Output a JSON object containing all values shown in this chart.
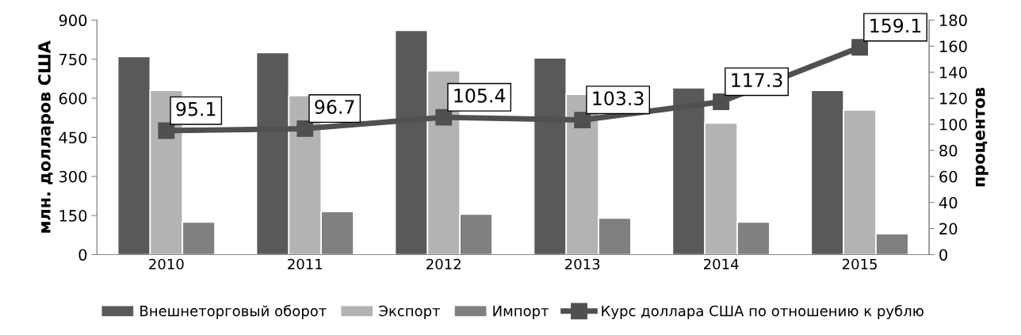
{
  "chart_data": {
    "type": "bar",
    "categories": [
      "2010",
      "2011",
      "2012",
      "2013",
      "2014",
      "2015"
    ],
    "ylabel": "млн. долларов США",
    "y2label": "процентов",
    "ylim": [
      0,
      900
    ],
    "yticks": [
      0,
      150,
      300,
      450,
      600,
      750,
      900
    ],
    "y2lim": [
      0,
      180
    ],
    "y2ticks": [
      0,
      20,
      40,
      60,
      80,
      100,
      120,
      140,
      160,
      180
    ],
    "grid": false,
    "legend": "bottom",
    "series": [
      {
        "name": "Внешнеторговый оборот",
        "color": "#595959",
        "values": [
          760,
          775,
          860,
          755,
          640,
          630
        ]
      },
      {
        "name": "Экспорт",
        "color": "#b3b3b3",
        "values": [
          630,
          610,
          705,
          615,
          505,
          555
        ]
      },
      {
        "name": "Импорт",
        "color": "#808080",
        "values": [
          125,
          165,
          155,
          140,
          125,
          80
        ]
      },
      {
        "name": "Курс доллара США по отношению к рублю",
        "type": "line",
        "axis": "y2",
        "color": "#505050",
        "marker": "square",
        "data_labels": true,
        "values": [
          95.1,
          96.7,
          105.4,
          103.3,
          117.3,
          159.1
        ]
      }
    ]
  }
}
